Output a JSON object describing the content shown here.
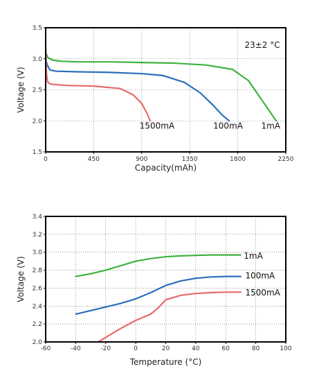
{
  "chart_data": [
    {
      "type": "line",
      "title": "",
      "xlabel": "Capacity(mAh)",
      "ylabel": "Voltage (V)",
      "xlim": [
        0,
        2250
      ],
      "ylim": [
        1.5,
        3.5
      ],
      "xticks": [
        0,
        450,
        900,
        1350,
        1800,
        2250
      ],
      "yticks": [
        1.5,
        2.0,
        2.5,
        3.0,
        3.5
      ],
      "xtick_labels": [
        "0",
        "450",
        "900",
        "1350",
        "1800",
        "2250"
      ],
      "ytick_labels": [
        "1.5",
        "2.0",
        "2.5",
        "3.0",
        "3.5"
      ],
      "grid": true,
      "annotations": [
        {
          "text": "23±2 °C",
          "x": 2030,
          "y": 3.22
        }
      ],
      "series": [
        {
          "name": "1mA",
          "color": "#3fb23f",
          "label_pos": {
            "x": 2020,
            "y": 1.92
          },
          "x": [
            0,
            20,
            60,
            150,
            300,
            600,
            900,
            1200,
            1500,
            1750,
            1900,
            2000,
            2080,
            2160
          ],
          "y": [
            3.1,
            3.02,
            2.98,
            2.96,
            2.95,
            2.95,
            2.94,
            2.93,
            2.9,
            2.83,
            2.65,
            2.4,
            2.2,
            2.0
          ]
        },
        {
          "name": "100mA",
          "color": "#2a6fbb",
          "label_pos": {
            "x": 1570,
            "y": 1.92
          },
          "x": [
            0,
            15,
            40,
            100,
            300,
            600,
            900,
            1100,
            1300,
            1450,
            1570,
            1650,
            1720
          ],
          "y": [
            3.0,
            2.9,
            2.82,
            2.8,
            2.79,
            2.78,
            2.76,
            2.73,
            2.62,
            2.45,
            2.25,
            2.1,
            2.0
          ]
        },
        {
          "name": "1500mA",
          "color": "#e86a6a",
          "label_pos": {
            "x": 880,
            "y": 1.92
          },
          "x": [
            0,
            8,
            20,
            50,
            200,
            450,
            700,
            820,
            900,
            950,
            980
          ],
          "y": [
            3.2,
            2.75,
            2.62,
            2.59,
            2.57,
            2.56,
            2.52,
            2.42,
            2.28,
            2.12,
            2.0
          ]
        }
      ]
    },
    {
      "type": "line",
      "title": "",
      "xlabel": "Temperature (°C)",
      "ylabel": "Voltage (V)",
      "xlim": [
        -60,
        100
      ],
      "ylim": [
        2.0,
        3.4
      ],
      "xticks": [
        -60,
        -40,
        -20,
        0,
        20,
        40,
        60,
        80,
        100
      ],
      "yticks": [
        2.0,
        2.2,
        2.4,
        2.6,
        2.8,
        3.0,
        3.2,
        3.4
      ],
      "xtick_labels": [
        "-60",
        "-40",
        "-20",
        "0",
        "20",
        "40",
        "60",
        "80",
        "100"
      ],
      "ytick_labels": [
        "2.0",
        "2.2",
        "2.4",
        "2.6",
        "2.8",
        "3.0",
        "3.2",
        "3.4"
      ],
      "grid": true,
      "series": [
        {
          "name": "1mA",
          "color": "#3fb23f",
          "label_pos": {
            "x": 72,
            "y": 2.96
          },
          "x": [
            -40,
            -30,
            -20,
            -10,
            0,
            10,
            20,
            30,
            40,
            50,
            60,
            70
          ],
          "y": [
            2.73,
            2.76,
            2.8,
            2.85,
            2.9,
            2.93,
            2.95,
            2.96,
            2.965,
            2.97,
            2.97,
            2.97
          ]
        },
        {
          "name": "100mA",
          "color": "#2a6fbb",
          "label_pos": {
            "x": 73,
            "y": 2.74
          },
          "x": [
            -40,
            -30,
            -20,
            -10,
            0,
            10,
            20,
            30,
            40,
            50,
            60,
            70
          ],
          "y": [
            2.31,
            2.35,
            2.39,
            2.43,
            2.48,
            2.55,
            2.63,
            2.68,
            2.71,
            2.725,
            2.73,
            2.73
          ]
        },
        {
          "name": "1500mA",
          "color": "#e86a6a",
          "label_pos": {
            "x": 73,
            "y": 2.55
          },
          "x": [
            -25,
            -20,
            -10,
            0,
            10,
            15,
            20,
            30,
            40,
            50,
            60,
            70
          ],
          "y": [
            2.0,
            2.05,
            2.15,
            2.24,
            2.31,
            2.38,
            2.47,
            2.52,
            2.54,
            2.55,
            2.555,
            2.555
          ]
        }
      ]
    }
  ]
}
